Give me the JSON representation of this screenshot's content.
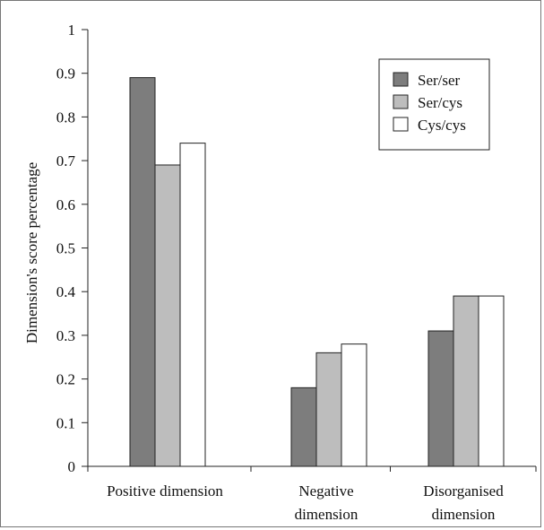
{
  "chart_data": {
    "type": "bar",
    "categories": [
      [
        "Positive dimension"
      ],
      [
        "Negative",
        "dimension"
      ],
      [
        "Disorganised",
        "dimension"
      ]
    ],
    "series": [
      {
        "name": "Ser/ser",
        "values": [
          0.89,
          0.18,
          0.31
        ],
        "color": "#7d7d7d"
      },
      {
        "name": "Ser/cys",
        "values": [
          0.69,
          0.26,
          0.39
        ],
        "color": "#bdbdbd"
      },
      {
        "name": "Cys/cys",
        "values": [
          0.74,
          0.28,
          0.39
        ],
        "color": "#ffffff"
      }
    ],
    "ylabel": "Dimension's score percentage",
    "ylim": [
      0,
      1
    ],
    "yticks": [
      "0",
      "0.1",
      "0.2",
      "0.3",
      "0.4",
      "0.5",
      "0.6",
      "0.7",
      "0.8",
      "0.9",
      "1"
    ],
    "legend_position": "top-right",
    "grid": false
  }
}
